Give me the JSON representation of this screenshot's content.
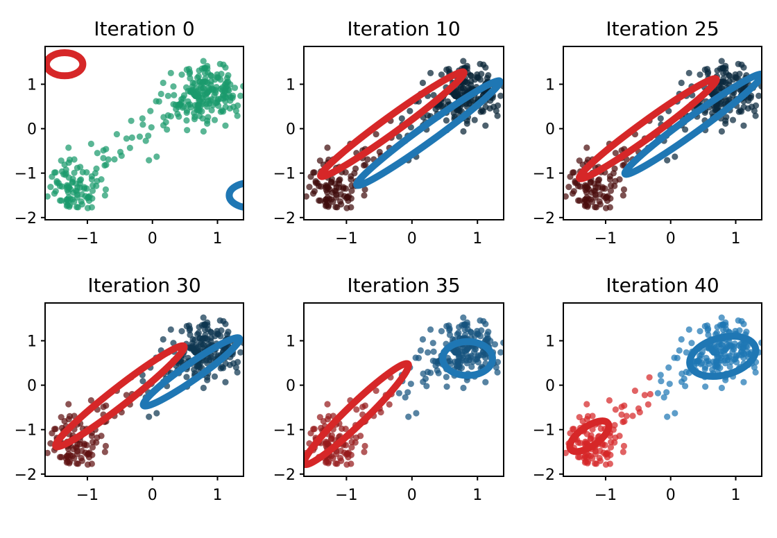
{
  "figure": {
    "layout": "2x3 grid of scatter plots"
  },
  "colors": {
    "cluster_a": "#d62728",
    "cluster_b": "#1f77b4",
    "initial": "#1a9a6c"
  },
  "chart_data": [
    {
      "type": "scatter",
      "title": "Iteration 0",
      "xlim": [
        -1.65,
        1.4
      ],
      "ylim": [
        -2.05,
        1.85
      ],
      "xticks": [
        -1,
        0,
        1
      ],
      "xtick_labels": [
        "−1",
        "0",
        "1"
      ],
      "yticks": [
        -2,
        -1,
        0,
        1
      ],
      "ytick_labels": [
        "−2",
        "−1",
        "0",
        "1"
      ],
      "point_mix": 0.5,
      "ellipses": [
        {
          "cluster": "a",
          "cx": -1.35,
          "cy": 1.45,
          "rx": 0.28,
          "ry": 0.26,
          "angle": 0
        },
        {
          "cluster": "b",
          "cx": 1.5,
          "cy": -1.5,
          "rx": 0.32,
          "ry": 0.28,
          "angle": 0
        }
      ]
    },
    {
      "type": "scatter",
      "title": "Iteration 10",
      "xlim": [
        -1.65,
        1.4
      ],
      "ylim": [
        -2.05,
        1.85
      ],
      "xticks": [
        -1,
        0,
        1
      ],
      "xtick_labels": [
        "−1",
        "0",
        "1"
      ],
      "yticks": [
        -2,
        -1,
        0,
        1
      ],
      "ytick_labels": [
        "−2",
        "−1",
        "0",
        "1"
      ],
      "point_mix": 0.3,
      "ellipses": [
        {
          "cluster": "a",
          "cx": -0.3,
          "cy": 0.1,
          "rx": 1.35,
          "ry": 0.18,
          "angle": 36
        },
        {
          "cluster": "b",
          "cx": 0.25,
          "cy": -0.1,
          "rx": 1.35,
          "ry": 0.18,
          "angle": 36
        }
      ]
    },
    {
      "type": "scatter",
      "title": "Iteration 25",
      "xlim": [
        -1.65,
        1.4
      ],
      "ylim": [
        -2.05,
        1.85
      ],
      "xticks": [
        -1,
        0,
        1
      ],
      "xtick_labels": [
        "−1",
        "0",
        "1"
      ],
      "yticks": [
        -2,
        -1,
        0,
        1
      ],
      "ytick_labels": [
        "−2",
        "−1",
        "0",
        "1"
      ],
      "point_mix": 0.35,
      "ellipses": [
        {
          "cluster": "a",
          "cx": -0.35,
          "cy": 0.0,
          "rx": 1.3,
          "ry": 0.18,
          "angle": 36
        },
        {
          "cluster": "b",
          "cx": 0.35,
          "cy": 0.1,
          "rx": 1.3,
          "ry": 0.18,
          "angle": 36
        }
      ]
    },
    {
      "type": "scatter",
      "title": "Iteration 30",
      "xlim": [
        -1.65,
        1.4
      ],
      "ylim": [
        -2.05,
        1.85
      ],
      "xticks": [
        -1,
        0,
        1
      ],
      "xtick_labels": [
        "−1",
        "0",
        "1"
      ],
      "yticks": [
        -2,
        -1,
        0,
        1
      ],
      "ytick_labels": [
        "−2",
        "−1",
        "0",
        "1"
      ],
      "point_mix": 0.45,
      "ellipses": [
        {
          "cluster": "a",
          "cx": -0.5,
          "cy": -0.25,
          "rx": 1.25,
          "ry": 0.2,
          "angle": 38
        },
        {
          "cluster": "b",
          "cx": 0.6,
          "cy": 0.3,
          "rx": 0.9,
          "ry": 0.18,
          "angle": 35
        }
      ]
    },
    {
      "type": "scatter",
      "title": "Iteration 35",
      "xlim": [
        -1.65,
        1.4
      ],
      "ylim": [
        -2.05,
        1.85
      ],
      "xticks": [
        -1,
        0,
        1
      ],
      "xtick_labels": [
        "−1",
        "0",
        "1"
      ],
      "yticks": [
        -2,
        -1,
        0,
        1
      ],
      "ytick_labels": [
        "−2",
        "−1",
        "0",
        "1"
      ],
      "point_mix": 0.7,
      "ellipses": [
        {
          "cluster": "a",
          "cx": -0.85,
          "cy": -0.65,
          "rx": 1.1,
          "ry": 0.22,
          "angle": 44
        },
        {
          "cluster": "b",
          "cx": 0.85,
          "cy": 0.6,
          "rx": 0.38,
          "ry": 0.38,
          "angle": 0
        }
      ]
    },
    {
      "type": "scatter",
      "title": "Iteration 40",
      "xlim": [
        -1.65,
        1.4
      ],
      "ylim": [
        -2.05,
        1.85
      ],
      "xticks": [
        -1,
        0,
        1
      ],
      "xtick_labels": [
        "−1",
        "0",
        "1"
      ],
      "yticks": [
        -2,
        -1,
        0,
        1
      ],
      "ytick_labels": [
        "−2",
        "−1",
        "0",
        "1"
      ],
      "point_mix": 1.0,
      "ellipses": [
        {
          "cluster": "a",
          "cx": -1.25,
          "cy": -1.15,
          "rx": 0.35,
          "ry": 0.22,
          "angle": 35
        },
        {
          "cluster": "b",
          "cx": 0.8,
          "cy": 0.65,
          "rx": 0.52,
          "ry": 0.42,
          "angle": 15
        }
      ]
    }
  ]
}
